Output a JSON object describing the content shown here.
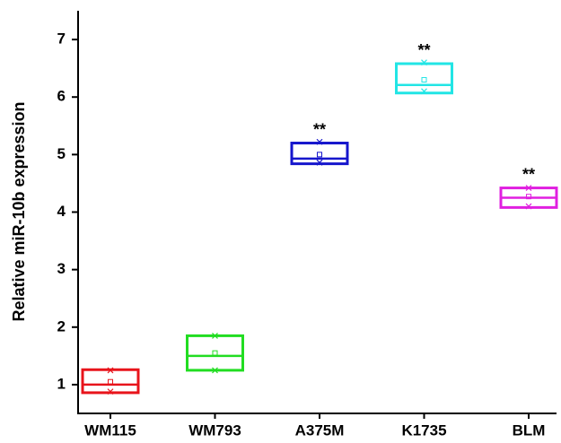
{
  "chart_data": {
    "type": "box",
    "y_label": "Relative miR-10b expression",
    "categories": [
      "WM115",
      "WM793",
      "A375M",
      "K1735",
      "BLM"
    ],
    "colors": [
      "#e8141b",
      "#22dd22",
      "#1616cc",
      "#22e5e5",
      "#e020e0"
    ],
    "q1": [
      0.86,
      1.25,
      4.84,
      6.07,
      4.08
    ],
    "median": [
      1.0,
      1.5,
      4.93,
      6.21,
      4.25
    ],
    "q3": [
      1.26,
      1.85,
      5.2,
      6.58,
      4.42
    ],
    "mean": [
      1.05,
      1.55,
      5.0,
      6.3,
      4.27
    ],
    "min": [
      0.88,
      1.25,
      4.86,
      6.1,
      4.1
    ],
    "max": [
      1.25,
      1.85,
      5.22,
      6.6,
      4.42
    ],
    "annotations": [
      null,
      null,
      "**",
      "**",
      "**"
    ],
    "ylim": [
      0.5,
      7.5
    ],
    "yticks": [
      1,
      2,
      3,
      4,
      5,
      6,
      7
    ]
  }
}
